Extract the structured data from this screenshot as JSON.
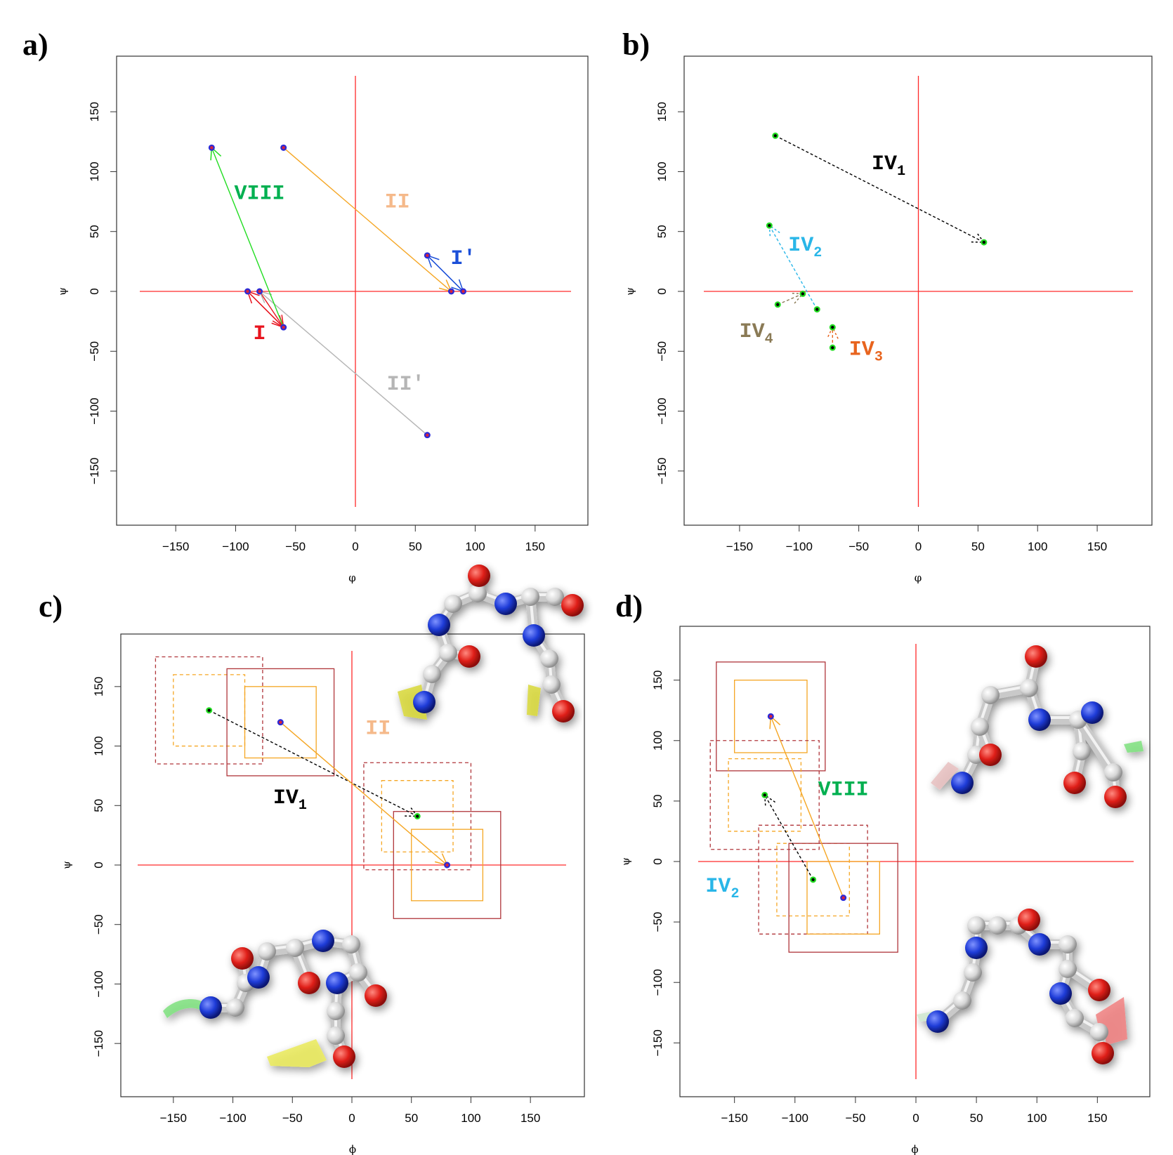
{
  "figure": {
    "panels": [
      "a)",
      "b)",
      "c)",
      "d)"
    ]
  },
  "colors": {
    "axis_line": "#ff2a2a",
    "type_I": "#e8141e",
    "type_I_prime": "#1b4fd8",
    "type_II": "#f5a623",
    "type_II_label": "#f5b98a",
    "type_II_prime": "#b5b5b5",
    "type_VIII": "#00b050",
    "type_VIII_arrow": "#22dd22",
    "type_IV1": "#000000",
    "type_IV2": "#29b6e8",
    "type_IV3": "#e8641e",
    "type_IV4": "#8a7a55",
    "box_dark": "#b0353a",
    "box_orange": "#f5a623",
    "point_red": "#d8233a",
    "point_blue": "#2a2ad8",
    "point_green": "#22dd22"
  },
  "chart_data": [
    {
      "panel": "a)",
      "type": "scatter",
      "xlabel": "φ",
      "ylabel": "ψ",
      "xlim": [
        -180,
        180
      ],
      "ylim": [
        -180,
        180
      ],
      "xticks": [
        -150,
        -100,
        -50,
        0,
        50,
        100,
        150
      ],
      "yticks": [
        -150,
        -100,
        -50,
        0,
        50,
        100,
        150
      ],
      "transitions": [
        {
          "name": "I",
          "color": "#e8141e",
          "arrows": [
            [
              -60,
              -30,
              -90,
              0
            ],
            [
              -90,
              0,
              -60,
              -30
            ],
            [
              -80,
              0,
              -60,
              -30
            ]
          ]
        },
        {
          "name": "I′",
          "color": "#1b4fd8",
          "arrows": [
            [
              60,
              30,
              90,
              0
            ],
            [
              90,
              0,
              60,
              30
            ]
          ]
        },
        {
          "name": "II",
          "color": "#f5a623",
          "arrows": [
            [
              -60,
              120,
              80,
              0
            ]
          ]
        },
        {
          "name": "II′",
          "color": "#b5b5b5",
          "arrows": [
            [
              60,
              -120,
              -80,
              0
            ]
          ]
        },
        {
          "name": "VIII",
          "color": "#22dd22",
          "arrows": [
            [
              -60,
              -30,
              -120,
              120
            ]
          ]
        }
      ],
      "points": [
        [
          -120,
          120
        ],
        [
          -60,
          120
        ],
        [
          60,
          30
        ],
        [
          80,
          0
        ],
        [
          90,
          0
        ],
        [
          -90,
          0
        ],
        [
          -80,
          0
        ],
        [
          -60,
          -30
        ],
        [
          60,
          -120
        ]
      ],
      "labels": [
        {
          "text": "VIII",
          "sub": "",
          "color": "#00b050",
          "x": -80,
          "y": 77
        },
        {
          "text": "II",
          "sub": "",
          "color": "#f5b98a",
          "x": 35,
          "y": 70
        },
        {
          "text": "I′",
          "sub": "",
          "color": "#1b4fd8",
          "x": 90,
          "y": 23
        },
        {
          "text": "I",
          "sub": "",
          "color": "#e8141e",
          "x": -80,
          "y": -40
        },
        {
          "text": "II′",
          "sub": "",
          "color": "#b5b5b5",
          "x": 42,
          "y": -82
        }
      ]
    },
    {
      "panel": "b)",
      "type": "scatter",
      "xlabel": "φ",
      "ylabel": "ψ",
      "xlim": [
        -180,
        180
      ],
      "ylim": [
        -180,
        180
      ],
      "xticks": [
        -150,
        -100,
        -50,
        0,
        50,
        100,
        150
      ],
      "yticks": [
        -150,
        -100,
        -50,
        0,
        50,
        100,
        150
      ],
      "transitions": [
        {
          "name": "IV1",
          "color": "#000000",
          "arrows": [
            [
              -120,
              130,
              55,
              41
            ]
          ]
        },
        {
          "name": "IV2",
          "color": "#29b6e8",
          "arrows": [
            [
              -85,
              -15,
              -125,
              55
            ]
          ]
        },
        {
          "name": "IV3",
          "color": "#e8641e",
          "arrows": [
            [
              -72,
              -47,
              -72,
              -30
            ]
          ]
        },
        {
          "name": "IV4",
          "color": "#8a7a55",
          "arrows": [
            [
              -118,
              -11,
              -97,
              -2
            ]
          ]
        }
      ],
      "points": [
        [
          -120,
          130
        ],
        [
          55,
          41
        ],
        [
          -125,
          55
        ],
        [
          -97,
          -2
        ],
        [
          -118,
          -11
        ],
        [
          -85,
          -15
        ],
        [
          -72,
          -30
        ],
        [
          -72,
          -47
        ]
      ],
      "labels": [
        {
          "text": "IV",
          "sub": "1",
          "color": "#000000",
          "x": -25,
          "y": 102
        },
        {
          "text": "IV",
          "sub": "2",
          "color": "#29b6e8",
          "x": -95,
          "y": 34
        },
        {
          "text": "IV",
          "sub": "4",
          "color": "#8a7a55",
          "x": -136,
          "y": -38
        },
        {
          "text": "IV",
          "sub": "3",
          "color": "#e8641e",
          "x": -44,
          "y": -53
        }
      ]
    },
    {
      "panel": "c)",
      "type": "scatter",
      "xlabel": "ϕ",
      "ylabel": "ψ",
      "xlim": [
        -180,
        180
      ],
      "ylim": [
        -180,
        180
      ],
      "xticks": [
        -150,
        -100,
        -50,
        0,
        50,
        100,
        150
      ],
      "yticks": [
        -150,
        -100,
        -50,
        0,
        50,
        100,
        150
      ],
      "transitions": [
        {
          "name": "IV1",
          "color": "#000000",
          "arrows": [
            [
              -120,
              130,
              55,
              41
            ]
          ]
        },
        {
          "name": "II",
          "color": "#f5a623",
          "arrows": [
            [
              -60,
              120,
              80,
              0
            ]
          ]
        }
      ],
      "points": [
        [
          -120,
          130
        ],
        [
          55,
          41
        ],
        [
          -60,
          120
        ],
        [
          80,
          0
        ]
      ],
      "boxes": [
        {
          "center": [
            -120,
            130
          ],
          "half": 45,
          "style": "dark-dashed"
        },
        {
          "center": [
            -120,
            130
          ],
          "half": 30,
          "style": "orange-dashed"
        },
        {
          "center": [
            -60,
            120
          ],
          "half": 45,
          "style": "dark"
        },
        {
          "center": [
            -60,
            120
          ],
          "half": 30,
          "style": "orange"
        },
        {
          "center": [
            55,
            41
          ],
          "half": 45,
          "style": "dark-dashed"
        },
        {
          "center": [
            55,
            41
          ],
          "half": 30,
          "style": "orange-dashed"
        },
        {
          "center": [
            80,
            0
          ],
          "half": 45,
          "style": "dark"
        },
        {
          "center": [
            80,
            0
          ],
          "half": 30,
          "style": "orange"
        }
      ],
      "labels": [
        {
          "text": "II",
          "sub": "",
          "color": "#f5b98a",
          "x": 22,
          "y": 110
        },
        {
          "text": "IV",
          "sub": "1",
          "color": "#000000",
          "x": -52,
          "y": 52
        }
      ]
    },
    {
      "panel": "d)",
      "type": "scatter",
      "xlabel": "ϕ",
      "ylabel": "ψ",
      "xlim": [
        -180,
        180
      ],
      "ylim": [
        -180,
        180
      ],
      "xticks": [
        -150,
        -100,
        -50,
        0,
        50,
        100,
        150
      ],
      "yticks": [
        -150,
        -100,
        -50,
        0,
        50,
        100,
        150
      ],
      "transitions": [
        {
          "name": "VIII",
          "color": "#f5a623",
          "arrows": [
            [
              -60,
              -30,
              -120,
              120
            ]
          ]
        },
        {
          "name": "IV2",
          "color": "#000000",
          "arrows": [
            [
              -85,
              -15,
              -125,
              55
            ]
          ]
        }
      ],
      "points": [
        [
          -120,
          120
        ],
        [
          -125,
          55
        ],
        [
          -85,
          -15
        ],
        [
          -60,
          -30
        ]
      ],
      "boxes": [
        {
          "center": [
            -120,
            120
          ],
          "half": 45,
          "style": "dark"
        },
        {
          "center": [
            -120,
            120
          ],
          "half": 30,
          "style": "orange"
        },
        {
          "center": [
            -125,
            55
          ],
          "half": 45,
          "style": "dark-dashed"
        },
        {
          "center": [
            -125,
            55
          ],
          "half": 30,
          "style": "orange-dashed"
        },
        {
          "center": [
            -85,
            -15
          ],
          "half": 45,
          "style": "dark-dashed"
        },
        {
          "center": [
            -85,
            -15
          ],
          "half": 30,
          "style": "orange-dashed"
        },
        {
          "center": [
            -60,
            -30
          ],
          "half": 45,
          "style": "dark"
        },
        {
          "center": [
            -60,
            -30
          ],
          "half": 30,
          "style": "orange"
        }
      ],
      "labels": [
        {
          "text": "VIII",
          "sub": "",
          "color": "#00b050",
          "x": -60,
          "y": 55
        },
        {
          "text": "IV",
          "sub": "2",
          "color": "#29b6e8",
          "x": -160,
          "y": -25
        }
      ]
    }
  ]
}
